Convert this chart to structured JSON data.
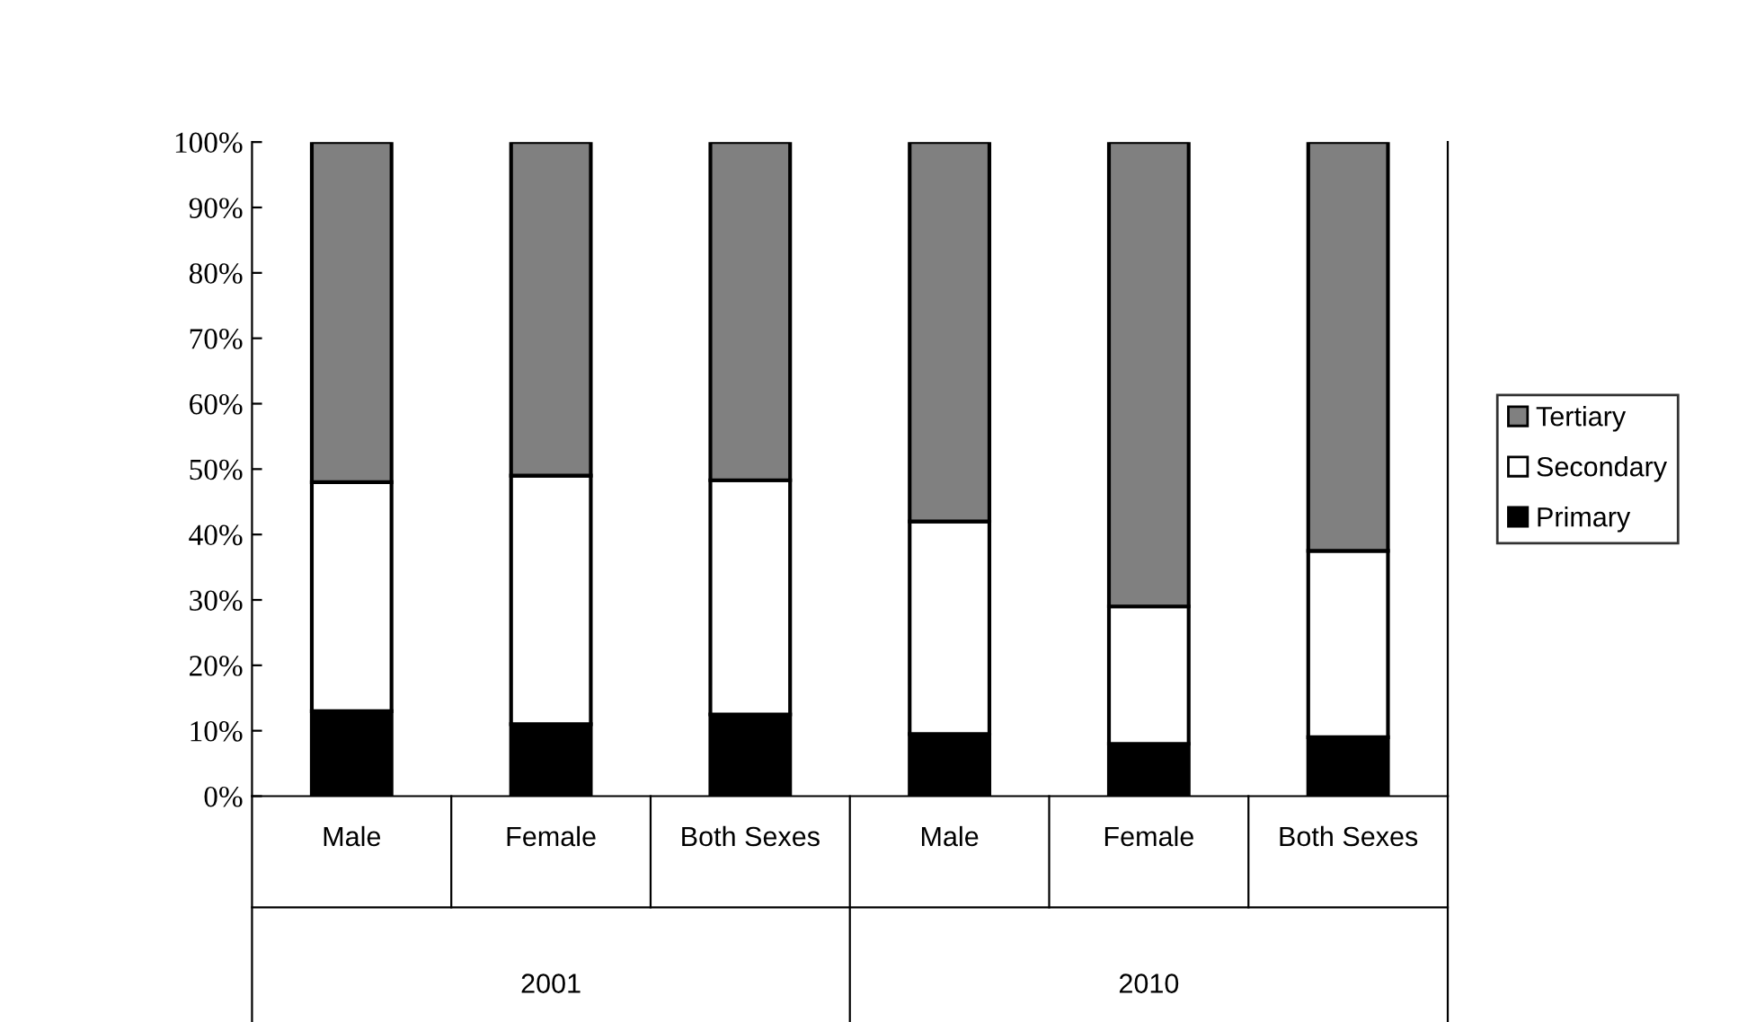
{
  "chart_data": {
    "type": "bar",
    "stacked": true,
    "categories": [
      "Male",
      "Female",
      "Both Sexes",
      "Male",
      "Female",
      "Both Sexes"
    ],
    "series": [
      {
        "name": "Primary",
        "color": "#000000",
        "values": [
          13,
          11,
          12.5,
          9.5,
          8,
          9
        ]
      },
      {
        "name": "Secondary",
        "color": "#ffffff",
        "values": [
          35,
          38,
          35.8,
          32.5,
          21,
          28.5
        ]
      },
      {
        "name": "Tertiary",
        "color": "#808080",
        "values": [
          52,
          51,
          51.7,
          58,
          71,
          62.5
        ]
      }
    ],
    "annotations": [
      "2001",
      "2010"
    ],
    "ylim": [
      0,
      100
    ],
    "yticks": [
      {
        "value": 0,
        "label": "0%"
      },
      {
        "value": 10,
        "label": "10%"
      },
      {
        "value": 20,
        "label": "20%"
      },
      {
        "value": 30,
        "label": "30%"
      },
      {
        "value": 40,
        "label": "40%"
      },
      {
        "value": 50,
        "label": "50%"
      },
      {
        "value": 60,
        "label": "60%"
      },
      {
        "value": 70,
        "label": "70%"
      },
      {
        "value": 80,
        "label": "80%"
      },
      {
        "value": 90,
        "label": "90%"
      },
      {
        "value": 100,
        "label": "100%"
      }
    ],
    "grid": false,
    "legend": "right"
  }
}
